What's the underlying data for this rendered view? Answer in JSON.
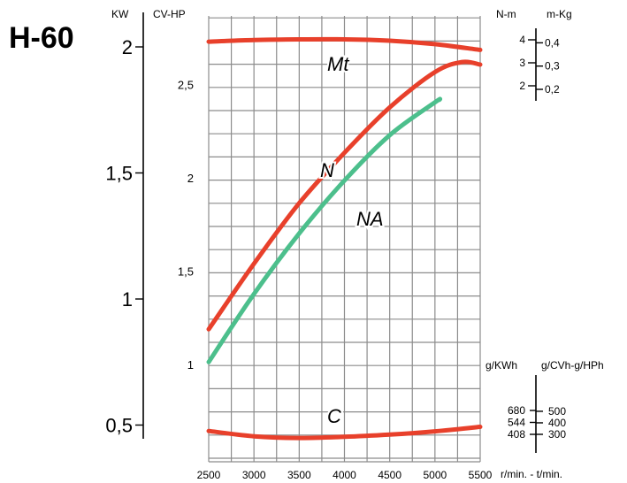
{
  "title": "H-60",
  "chart_data": {
    "type": "line",
    "x_label": "r/min. - t/min.",
    "x_ticks": [
      2500,
      3000,
      3500,
      4000,
      4500,
      5000,
      5500
    ],
    "x_range": [
      2500,
      5500
    ],
    "axes": {
      "kw": {
        "unit": "KW",
        "ticks": [
          "2",
          "1,5",
          "1",
          "0,5"
        ],
        "tick_values": [
          2,
          1.5,
          1,
          0.5
        ]
      },
      "cv": {
        "unit": "CV-HP",
        "ticks": [
          "2,5",
          "2",
          "1,5",
          "1"
        ],
        "tick_values": [
          2.5,
          2,
          1.5,
          1
        ]
      },
      "torque": {
        "unit_left": "N-m",
        "unit_right": "m-Kg",
        "ticks_nm": [
          "4",
          "3",
          "2"
        ],
        "tick_values_nm": [
          4,
          3,
          2
        ],
        "ticks_mkg": [
          "0,4",
          "0,3",
          "0,2"
        ],
        "tick_values_mkg": [
          0.4,
          0.3,
          0.2
        ]
      },
      "consumption": {
        "unit_left": "g/KWh",
        "unit_right": "g/CVh-g/HPh",
        "ticks_gkwh": [
          "680",
          "544",
          "408"
        ],
        "tick_values_gkwh": [
          680,
          544,
          408
        ],
        "ticks_gcvh": [
          "500",
          "400",
          "300"
        ],
        "tick_values_gcvh": [
          500,
          400,
          300
        ]
      }
    },
    "series": [
      {
        "name": "Mt",
        "axis": "torque",
        "color": "#e8402b",
        "x": [
          2500,
          3000,
          3500,
          4000,
          4500,
          5000,
          5500
        ],
        "y": [
          3.92,
          3.99,
          4.02,
          4.02,
          3.96,
          3.81,
          3.56
        ]
      },
      {
        "name": "N",
        "axis": "kw",
        "color": "#e8402b",
        "x": [
          2500,
          3000,
          3500,
          4000,
          4500,
          5000,
          5300,
          5500
        ],
        "y": [
          0.88,
          1.14,
          1.38,
          1.58,
          1.76,
          1.9,
          1.94,
          1.93
        ]
      },
      {
        "name": "NA",
        "axis": "kw",
        "color": "#4cbf8c",
        "x": [
          2500,
          3000,
          3500,
          4000,
          4500,
          5000,
          5050
        ],
        "y": [
          0.75,
          1.02,
          1.26,
          1.47,
          1.65,
          1.78,
          1.79
        ]
      },
      {
        "name": "C",
        "axis": "consumption",
        "color": "#e8402b",
        "x": [
          2500,
          3000,
          3500,
          4000,
          4500,
          5000,
          5500
        ],
        "y": [
          446,
          386,
          367,
          380,
          405,
          442,
          494
        ]
      }
    ]
  }
}
